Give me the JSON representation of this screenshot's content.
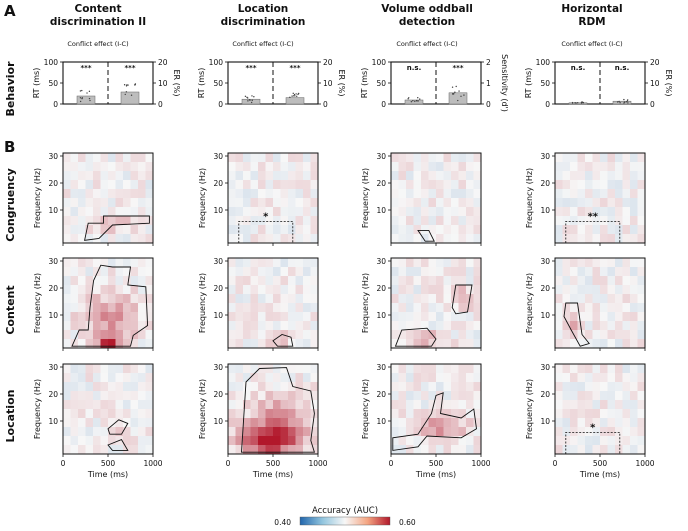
{
  "figure": {
    "panel_a_label": "A",
    "panel_b_label": "B",
    "columns": [
      {
        "title_lines": [
          "Content",
          "discrimination II"
        ],
        "subtitle": "Conflict effect (I-C)",
        "right_axis_label": "ER (%)",
        "right_ticks": [
          "20",
          "10",
          "0"
        ],
        "sig_left": "***",
        "sig_right": "***",
        "bar_left_value": 20,
        "bar_right_value": 30
      },
      {
        "title_lines": [
          "Location",
          "discrimination"
        ],
        "subtitle": "Conflict effect (I-C)",
        "right_axis_label": "ER (%)",
        "right_ticks": [
          "20",
          "10",
          "0"
        ],
        "sig_left": "***",
        "sig_right": "***",
        "bar_left_value": 12,
        "bar_right_value": 16
      },
      {
        "title_lines": [
          "Volume oddball",
          "detection"
        ],
        "subtitle": "Conflict effect (I-C)",
        "right_axis_label": "Sensitivity (d')",
        "right_ticks": [
          "2",
          "1",
          "0"
        ],
        "sig_left": "n.s.",
        "sig_right": "***",
        "bar_left_value": 10,
        "bar_right_value": 28
      },
      {
        "title_lines": [
          "Horizontal",
          "RDM"
        ],
        "subtitle": "Conflict effect (I-C)",
        "right_axis_label": "ER (%)",
        "right_ticks": [
          "20",
          "10",
          "0"
        ],
        "sig_left": "n.s.",
        "sig_right": "n.s.",
        "bar_left_value": 3,
        "bar_right_value": 7
      }
    ],
    "behavior_row_label": "Behavior",
    "rt_axis_label": "RT (ms)",
    "rt_ticks": [
      "100",
      "50",
      "0"
    ],
    "tf_row_labels": [
      "Congruency",
      "Content",
      "Location"
    ],
    "freq_axis_label": "Frequency (Hz)",
    "freq_ticks": [
      "30",
      "20",
      "10"
    ],
    "time_axis_label": "Time (ms)",
    "time_ticks": [
      "0",
      "500",
      "1000"
    ],
    "tf_significance": {
      "r0c1": "*",
      "r0c3": "**",
      "r2c3": "*"
    },
    "colorbar": {
      "title": "Accuracy (AUC)",
      "min_label": "0.40",
      "max_label": "0.60",
      "low_color": "#2166ac",
      "mid_color": "#f7f7f7",
      "high_color": "#b2182b"
    }
  }
}
